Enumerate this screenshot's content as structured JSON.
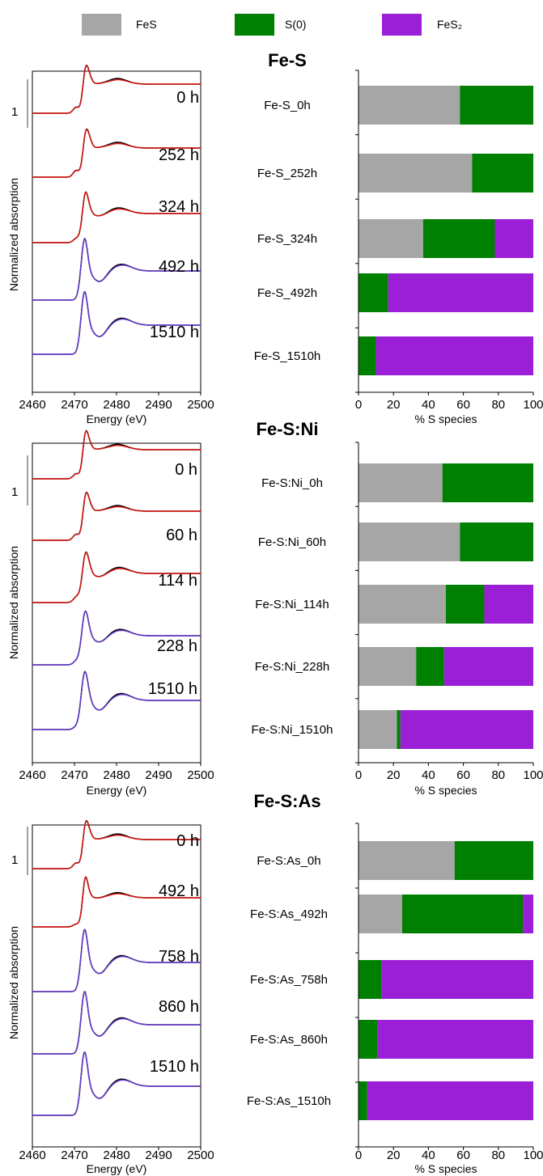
{
  "legend": [
    {
      "label": "FeS",
      "color": "#a6a6a6"
    },
    {
      "label": "S(0)",
      "color": "#008000"
    },
    {
      "label": "FeS₂",
      "color": "#9a1fd6"
    }
  ],
  "colors": {
    "experimental": "#000000",
    "fit_fes_s0": "#e3140f",
    "fit_fes2": "#6a3bd9",
    "scale_bar": "#444444"
  },
  "panels": [
    {
      "title": "Fe-S",
      "scale_bar_label": "1",
      "spectra_xlabel": "Energy (eV)",
      "spectra_ylabel": "Normalized absorption",
      "spectra_xticks": [
        "2460",
        "2470",
        "2480",
        "2490",
        "2500"
      ],
      "spectra_xlim": [
        2460,
        2500
      ],
      "time_labels": [
        "0 h",
        "252 h",
        "324 h",
        "492 h",
        "1510 h"
      ],
      "bars_xlabel": "% S species",
      "bars_xticks": [
        "0",
        "20",
        "40",
        "60",
        "80",
        "100"
      ]
    },
    {
      "title": "Fe-S:Ni",
      "scale_bar_label": "1",
      "spectra_xlabel": "Energy (eV)",
      "spectra_ylabel": "Normalized absorption",
      "spectra_xticks": [
        "2460",
        "2470",
        "2480",
        "2490",
        "2500"
      ],
      "spectra_xlim": [
        2460,
        2500
      ],
      "time_labels": [
        "0 h",
        "60 h",
        "114 h",
        "228 h",
        "1510 h"
      ],
      "bars_xlabel": "% S species",
      "bars_xticks": [
        "0",
        "20",
        "40",
        "60",
        "80",
        "100"
      ]
    },
    {
      "title": "Fe-S:As",
      "scale_bar_label": "1",
      "spectra_xlabel": "Energy (eV)",
      "spectra_ylabel": "Normalized absorption",
      "spectra_xticks": [
        "2460",
        "2470",
        "2480",
        "2490",
        "2500"
      ],
      "spectra_xlim": [
        2460,
        2500
      ],
      "time_labels": [
        "0 h",
        "492 h",
        "758 h",
        "860 h",
        "1510 h"
      ],
      "bars_xlabel": "% S species",
      "bars_xticks": [
        "0",
        "20",
        "40",
        "60",
        "80",
        "100"
      ]
    }
  ],
  "chart_data": [
    {
      "type": "bar",
      "orientation": "horizontal",
      "stacked": true,
      "title": "Fe-S",
      "xlabel": "% S species",
      "xlim": [
        0,
        100
      ],
      "categories": [
        "Fe-S_0h",
        "Fe-S_252h",
        "Fe-S_324h",
        "Fe-S_492h",
        "Fe-S_1510h"
      ],
      "series": [
        {
          "name": "FeS",
          "values": [
            58,
            65,
            37,
            0,
            0
          ]
        },
        {
          "name": "S(0)",
          "values": [
            42,
            35,
            41,
            17,
            10
          ]
        },
        {
          "name": "FeS₂",
          "values": [
            0,
            0,
            22,
            83,
            90
          ]
        }
      ]
    },
    {
      "type": "bar",
      "orientation": "horizontal",
      "stacked": true,
      "title": "Fe-S:Ni",
      "xlabel": "% S species",
      "xlim": [
        0,
        100
      ],
      "categories": [
        "Fe-S:Ni_0h",
        "Fe-S:Ni_60h",
        "Fe-S:Ni_114h",
        "Fe-S:Ni_228h",
        "Fe-S:Ni_1510h"
      ],
      "series": [
        {
          "name": "FeS",
          "values": [
            48,
            58,
            50,
            33,
            22
          ]
        },
        {
          "name": "S(0)",
          "values": [
            52,
            42,
            22,
            16,
            2
          ]
        },
        {
          "name": "FeS₂",
          "values": [
            0,
            0,
            28,
            51,
            76
          ]
        }
      ]
    },
    {
      "type": "bar",
      "orientation": "horizontal",
      "stacked": true,
      "title": "Fe-S:As",
      "xlabel": "% S species",
      "xlim": [
        0,
        100
      ],
      "categories": [
        "Fe-S:As_0h",
        "Fe-S:As_492h",
        "Fe-S:As_758h",
        "Fe-S:As_860h",
        "Fe-S:As_1510h"
      ],
      "series": [
        {
          "name": "FeS",
          "values": [
            55,
            25,
            0,
            0,
            0
          ]
        },
        {
          "name": "S(0)",
          "values": [
            45,
            69,
            13,
            11,
            5
          ]
        },
        {
          "name": "FeS₂",
          "values": [
            0,
            6,
            87,
            89,
            95
          ]
        }
      ]
    }
  ]
}
